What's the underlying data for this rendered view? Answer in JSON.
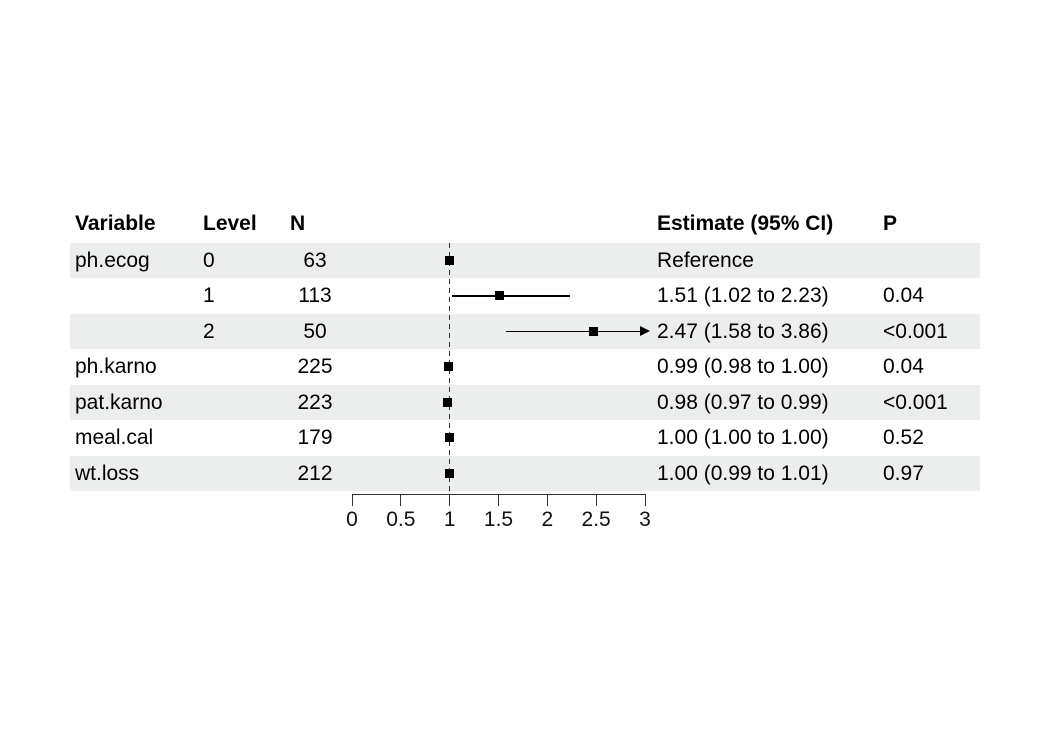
{
  "table": {
    "headers": {
      "variable": "Variable",
      "level": "Level",
      "n": "N",
      "estimate": "Estimate (95% CI)",
      "p": "P"
    },
    "rows": [
      {
        "variable": "ph.ecog",
        "level": "0",
        "n": "63",
        "estimate": "Reference",
        "p": ""
      },
      {
        "variable": "",
        "level": "1",
        "n": "113",
        "estimate": "1.51 (1.02 to 2.23)",
        "p": "0.04"
      },
      {
        "variable": "",
        "level": "2",
        "n": "50",
        "estimate": "2.47 (1.58 to 3.86)",
        "p": "<0.001"
      },
      {
        "variable": "ph.karno",
        "level": "",
        "n": "225",
        "estimate": "0.99 (0.98 to 1.00)",
        "p": "0.04"
      },
      {
        "variable": "pat.karno",
        "level": "",
        "n": "223",
        "estimate": "0.98 (0.97 to 0.99)",
        "p": "<0.001"
      },
      {
        "variable": "meal.cal",
        "level": "",
        "n": "179",
        "estimate": "1.00 (1.00 to 1.00)",
        "p": "0.52"
      },
      {
        "variable": "wt.loss",
        "level": "",
        "n": "212",
        "estimate": "1.00 (0.99 to 1.01)",
        "p": "0.97"
      }
    ]
  },
  "chart_data": {
    "type": "forest",
    "title": "",
    "xlabel": "",
    "xlim": [
      0,
      3
    ],
    "axis": {
      "ticks": [
        0,
        0.5,
        1,
        1.5,
        2,
        2.5,
        3
      ],
      "min": 0,
      "max": 3,
      "reference_line": 1
    },
    "rows": [
      {
        "label": "ph.ecog 0",
        "n": 63,
        "estimate": 1.0,
        "ci_low": null,
        "ci_high": null,
        "reference": true,
        "p": null
      },
      {
        "label": "ph.ecog 1",
        "n": 113,
        "estimate": 1.51,
        "ci_low": 1.02,
        "ci_high": 2.23,
        "reference": false,
        "p": 0.04
      },
      {
        "label": "ph.ecog 2",
        "n": 50,
        "estimate": 2.47,
        "ci_low": 1.58,
        "ci_high": 3.86,
        "reference": false,
        "p": "<0.001",
        "arrow_high": true
      },
      {
        "label": "ph.karno",
        "n": 225,
        "estimate": 0.99,
        "ci_low": 0.98,
        "ci_high": 1.0,
        "reference": false,
        "p": 0.04
      },
      {
        "label": "pat.karno",
        "n": 223,
        "estimate": 0.98,
        "ci_low": 0.97,
        "ci_high": 0.99,
        "reference": false,
        "p": "<0.001"
      },
      {
        "label": "meal.cal",
        "n": 179,
        "estimate": 1.0,
        "ci_low": 1.0,
        "ci_high": 1.0,
        "reference": false,
        "p": 0.52
      },
      {
        "label": "wt.loss",
        "n": 212,
        "estimate": 1.0,
        "ci_low": 0.99,
        "ci_high": 1.01,
        "reference": false,
        "p": 0.97
      }
    ],
    "colors": {
      "stripe": "#eceeed",
      "marker": "#000000",
      "ci_line": "#000000",
      "axis": "#333333",
      "tick_label": "#111111",
      "text": "#000000"
    }
  }
}
